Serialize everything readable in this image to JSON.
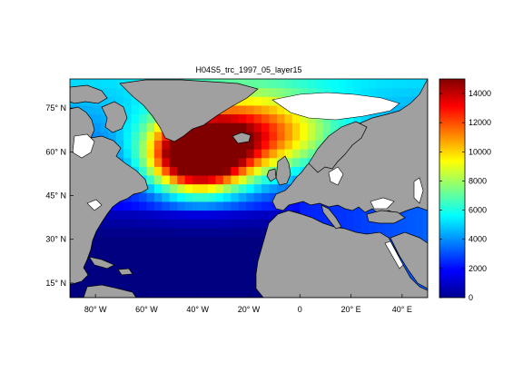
{
  "figure": {
    "title": "H04S5_trc_1997_05_layer15"
  },
  "map": {
    "lon_range": [
      -90,
      50
    ],
    "lat_range": [
      10,
      85
    ],
    "x_ticks": [
      {
        "value": -80,
        "label": "80° W"
      },
      {
        "value": -60,
        "label": "60° W"
      },
      {
        "value": -40,
        "label": "40° W"
      },
      {
        "value": -20,
        "label": "20° W"
      },
      {
        "value": 0,
        "label": "0"
      },
      {
        "value": 20,
        "label": "20° E"
      },
      {
        "value": 40,
        "label": "40° E"
      }
    ],
    "y_ticks": [
      {
        "value": 75,
        "label": "75° N"
      },
      {
        "value": 60,
        "label": "60° N"
      },
      {
        "value": 45,
        "label": "45° N"
      },
      {
        "value": 30,
        "label": "30° N"
      },
      {
        "value": 15,
        "label": "15° N"
      }
    ],
    "land_color": "#a0a0a0",
    "nodata_color": "#ffffff"
  },
  "colorbar": {
    "min": 0,
    "max": 15000,
    "colormap": "jet",
    "ticks": [
      {
        "value": 0,
        "label": "0"
      },
      {
        "value": 2000,
        "label": "2000"
      },
      {
        "value": 4000,
        "label": "4000"
      },
      {
        "value": 6000,
        "label": "6000"
      },
      {
        "value": 8000,
        "label": "8000"
      },
      {
        "value": 10000,
        "label": "10000"
      },
      {
        "value": 12000,
        "label": "12000"
      },
      {
        "value": 14000,
        "label": "14000"
      }
    ]
  }
}
